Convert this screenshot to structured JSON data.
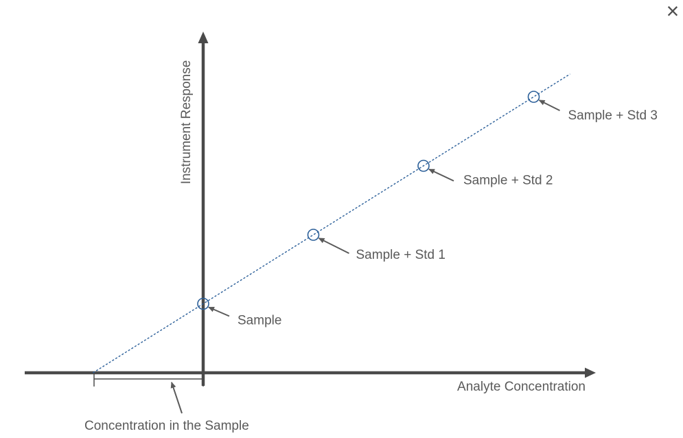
{
  "window": {
    "close_glyph": "×",
    "close_icon": "close-icon"
  },
  "chart_data": {
    "type": "scatter",
    "title": "",
    "xlabel": "Analyte Concentration",
    "ylabel": "Instrument Response",
    "x": [
      0,
      1,
      2,
      3
    ],
    "y": [
      1,
      2,
      3,
      4
    ],
    "point_labels": [
      "Sample",
      "Sample + Std 1",
      "Sample + Std 2",
      "Sample + Std 3"
    ],
    "xlim": [
      -1,
      3.4
    ],
    "ylim": [
      0,
      4
    ],
    "fit_line": {
      "style": "dashed",
      "x_intercept": -1,
      "x_end": 3.33
    },
    "annotations": [
      {
        "text": "Concentration in the Sample",
        "refers_to": "interval between x-intercept and origin"
      }
    ],
    "grid": false,
    "legend": "none",
    "colors": {
      "fit_line": "#2b5f99",
      "markers": "#2b5f99",
      "axes": "#4a4a4a",
      "text": "#5a5a5a"
    }
  }
}
